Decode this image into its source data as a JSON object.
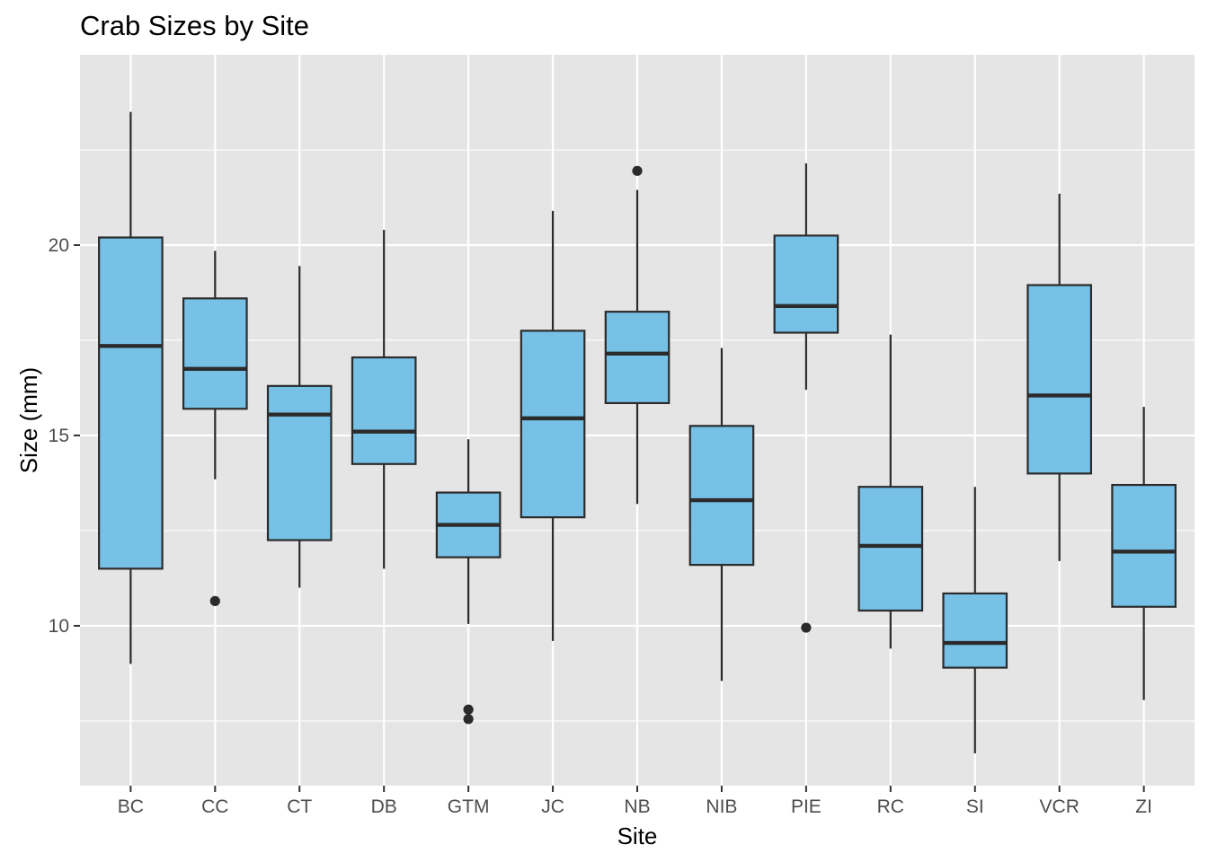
{
  "chart_data": {
    "type": "boxplot",
    "title": "Crab Sizes by Site",
    "xlabel": "Site",
    "ylabel": "Size (mm)",
    "categories": [
      "BC",
      "CC",
      "CT",
      "DB",
      "GTM",
      "JC",
      "NB",
      "NIB",
      "PIE",
      "RC",
      "SI",
      "VCR",
      "ZI"
    ],
    "yticks": [
      10,
      15,
      20
    ],
    "ylim": [
      5.8,
      25.0
    ],
    "grid": true,
    "legend": "none",
    "colors": {
      "panel": "#e5e5e5",
      "grid": "#ffffff",
      "box_fill": "#77c1e6",
      "box_stroke": "#2b2b2b",
      "outlier": "#2b2b2b"
    },
    "boxes": [
      {
        "site": "BC",
        "whisker_low": 9.0,
        "q1": 11.5,
        "median": 17.35,
        "q3": 20.2,
        "whisker_high": 23.5,
        "outliers": []
      },
      {
        "site": "CC",
        "whisker_low": 13.85,
        "q1": 15.7,
        "median": 16.75,
        "q3": 18.6,
        "whisker_high": 19.85,
        "outliers": [
          10.65
        ]
      },
      {
        "site": "CT",
        "whisker_low": 11.0,
        "q1": 12.25,
        "median": 15.55,
        "q3": 16.3,
        "whisker_high": 19.45,
        "outliers": []
      },
      {
        "site": "DB",
        "whisker_low": 11.5,
        "q1": 14.25,
        "median": 15.1,
        "q3": 17.05,
        "whisker_high": 20.4,
        "outliers": []
      },
      {
        "site": "GTM",
        "whisker_low": 10.05,
        "q1": 11.8,
        "median": 12.65,
        "q3": 13.5,
        "whisker_high": 14.9,
        "outliers": [
          7.8,
          7.55
        ]
      },
      {
        "site": "JC",
        "whisker_low": 9.6,
        "q1": 12.85,
        "median": 15.45,
        "q3": 17.75,
        "whisker_high": 20.9,
        "outliers": []
      },
      {
        "site": "NB",
        "whisker_low": 13.2,
        "q1": 15.85,
        "median": 17.15,
        "q3": 18.25,
        "whisker_high": 21.45,
        "outliers": [
          21.95
        ]
      },
      {
        "site": "NIB",
        "whisker_low": 8.55,
        "q1": 11.6,
        "median": 13.3,
        "q3": 15.25,
        "whisker_high": 17.3,
        "outliers": []
      },
      {
        "site": "PIE",
        "whisker_low": 16.2,
        "q1": 17.7,
        "median": 18.4,
        "q3": 20.25,
        "whisker_high": 22.15,
        "outliers": [
          9.95
        ]
      },
      {
        "site": "RC",
        "whisker_low": 9.4,
        "q1": 10.4,
        "median": 12.1,
        "q3": 13.65,
        "whisker_high": 17.65,
        "outliers": []
      },
      {
        "site": "SI",
        "whisker_low": 6.65,
        "q1": 8.9,
        "median": 9.55,
        "q3": 10.85,
        "whisker_high": 13.65,
        "outliers": []
      },
      {
        "site": "VCR",
        "whisker_low": 11.7,
        "q1": 14.0,
        "median": 16.05,
        "q3": 18.95,
        "whisker_high": 21.35,
        "outliers": []
      },
      {
        "site": "ZI",
        "whisker_low": 8.05,
        "q1": 10.5,
        "median": 11.95,
        "q3": 13.7,
        "whisker_high": 15.75,
        "outliers": []
      }
    ]
  }
}
